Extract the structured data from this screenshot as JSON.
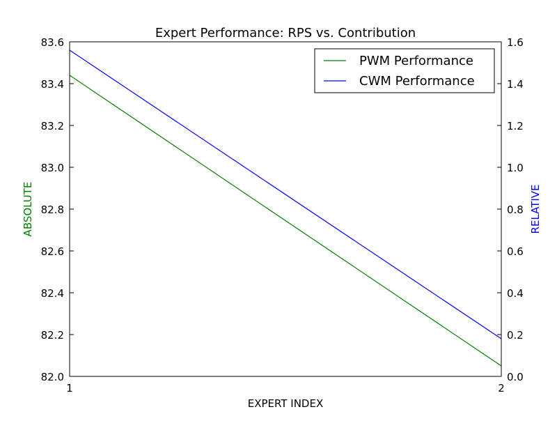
{
  "chart_data": {
    "type": "line",
    "title": "Expert Performance: RPS vs. Contribution",
    "xlabel": "EXPERT INDEX",
    "ylabel_left": "ABSOLUTE",
    "ylabel_right": "RELATIVE",
    "x": [
      1,
      2
    ],
    "xlim": [
      1,
      2
    ],
    "xticks": [
      "1",
      "2"
    ],
    "ylim_left": [
      82.0,
      83.6
    ],
    "yticks_left": [
      "82.0",
      "82.2",
      "82.4",
      "82.6",
      "82.8",
      "83.0",
      "83.2",
      "83.4",
      "83.6"
    ],
    "ylim_right": [
      0.0,
      1.6
    ],
    "yticks_right": [
      "0.0",
      "0.2",
      "0.4",
      "0.6",
      "0.8",
      "1.0",
      "1.2",
      "1.4",
      "1.6"
    ],
    "series": [
      {
        "name": "PWM Performance",
        "axis": "left",
        "color": "#008000",
        "values": [
          83.44,
          82.05
        ]
      },
      {
        "name": "CWM Performance",
        "axis": "right",
        "color": "#0000ff",
        "values": [
          1.56,
          0.18
        ]
      }
    ],
    "left_label_color": "#008000",
    "right_label_color": "#0000ff",
    "legend_position": "top-right",
    "grid": false
  }
}
